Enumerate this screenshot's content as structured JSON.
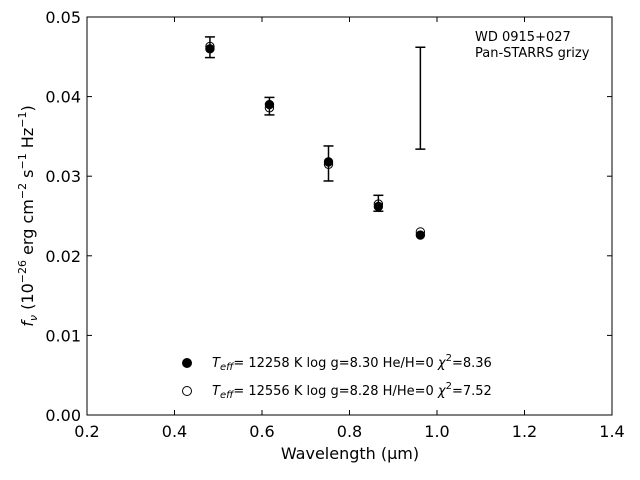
{
  "chart_data": {
    "type": "scatter",
    "xlabel": "Wavelength (μm)",
    "ylabel_parts": {
      "pre": "f",
      "pre_sub": "ν",
      "mid1": " (10",
      "exp1": "−26",
      "mid2": " erg cm",
      "exp2": "−2",
      "mid3": " s",
      "exp3": "−1",
      "mid4": " Hz",
      "exp4": "−1",
      "post": ")"
    },
    "xlim": [
      0.2,
      1.4
    ],
    "ylim": [
      0.0,
      0.05
    ],
    "x_ticks": [
      0.2,
      0.4,
      0.6,
      0.8,
      1.0,
      1.2,
      1.4
    ],
    "x_tick_labels": [
      "0.2",
      "0.4",
      "0.6",
      "0.8",
      "1.0",
      "1.2",
      "1.4"
    ],
    "y_ticks": [
      0.0,
      0.01,
      0.02,
      0.03,
      0.04,
      0.05
    ],
    "y_tick_labels": [
      "0.00",
      "0.01",
      "0.02",
      "0.03",
      "0.04",
      "0.05"
    ],
    "grid": false,
    "annotation_lines": [
      "WD 0915+027",
      "Pan-STARRS grizy"
    ],
    "observed": {
      "x": [
        0.481,
        0.617,
        0.752,
        0.866,
        0.962
      ],
      "y": [
        0.0462,
        0.0388,
        0.0316,
        0.0266,
        0.0398
      ],
      "yerr": [
        0.0013,
        0.0011,
        0.0022,
        0.001,
        0.0064
      ]
    },
    "series": [
      {
        "marker": "filled-circle",
        "label": {
          "t": "T",
          "sub": "eff",
          "mid": "= 12258 K  log g=8.30  He/H=0  ",
          "chi": "χ",
          "sup": "2",
          "end": "=8.36"
        },
        "x": [
          0.481,
          0.617,
          0.752,
          0.866,
          0.962
        ],
        "y": [
          0.046,
          0.039,
          0.0318,
          0.0262,
          0.0226
        ]
      },
      {
        "marker": "open-circle",
        "label": {
          "t": "T",
          "sub": "eff",
          "mid": "= 12556 K  log g=8.28  H/He=0  ",
          "chi": "χ",
          "sup": "2",
          "end": "=7.52"
        },
        "x": [
          0.481,
          0.617,
          0.752,
          0.866,
          0.962
        ],
        "y": [
          0.0463,
          0.0386,
          0.0315,
          0.0265,
          0.023
        ]
      }
    ],
    "legend_placement": "lower-center"
  }
}
